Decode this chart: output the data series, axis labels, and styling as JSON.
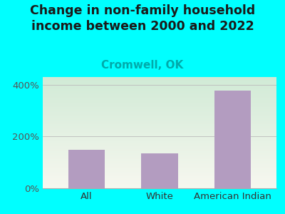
{
  "title": "Change in non-family household\nincome between 2000 and 2022",
  "subtitle": "Cromwell, OK",
  "categories": [
    "All",
    "White",
    "American Indian"
  ],
  "values": [
    150,
    135,
    378
  ],
  "bar_color": "#b39cc0",
  "title_color": "#1a1a1a",
  "subtitle_color": "#00aaaa",
  "bg_color": "#00ffff",
  "plot_bg_color_top_left": "#d6edcc",
  "plot_bg_color_bottom_right": "#f5f5f0",
  "yticks": [
    0,
    200,
    400
  ],
  "ylim": [
    0,
    430
  ],
  "tick_label_color": "#555555",
  "xlabel_color": "#333333",
  "title_fontsize": 12.5,
  "subtitle_fontsize": 11,
  "tick_fontsize": 9.5,
  "xlabel_fontsize": 9.5
}
